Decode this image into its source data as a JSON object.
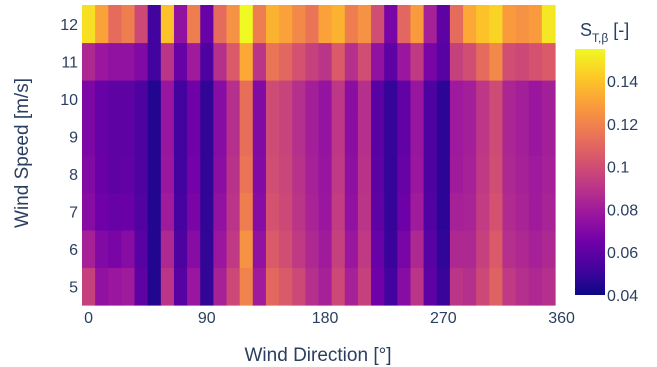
{
  "chart_data": {
    "type": "heatmap",
    "xlabel": "Wind Direction [°]",
    "ylabel": "Wind Speed [m/s]",
    "x_ticks": [
      0,
      90,
      180,
      270,
      360
    ],
    "y_ticks": [
      5,
      6,
      7,
      8,
      9,
      10,
      11,
      12
    ],
    "xlim": [
      -5,
      355
    ],
    "ylim": [
      4.5,
      12.5
    ],
    "x": [
      0,
      10,
      20,
      30,
      40,
      50,
      60,
      70,
      80,
      90,
      100,
      110,
      120,
      130,
      140,
      150,
      160,
      170,
      180,
      190,
      200,
      210,
      220,
      230,
      240,
      250,
      260,
      270,
      280,
      290,
      300,
      310,
      320,
      330,
      340,
      350
    ],
    "y": [
      5,
      6,
      7,
      8,
      9,
      10,
      11,
      12
    ],
    "z": [
      [
        0.095,
        0.075,
        0.078,
        0.08,
        0.06,
        0.045,
        0.09,
        0.058,
        0.078,
        0.048,
        0.082,
        0.098,
        0.12,
        0.08,
        0.11,
        0.105,
        0.098,
        0.088,
        0.082,
        0.098,
        0.082,
        0.095,
        0.065,
        0.052,
        0.072,
        0.09,
        0.06,
        0.05,
        0.09,
        0.088,
        0.098,
        0.108,
        0.092,
        0.088,
        0.085,
        0.088
      ],
      [
        0.082,
        0.07,
        0.068,
        0.072,
        0.058,
        0.045,
        0.085,
        0.055,
        0.072,
        0.048,
        0.078,
        0.092,
        0.125,
        0.075,
        0.105,
        0.1,
        0.092,
        0.085,
        0.08,
        0.095,
        0.078,
        0.092,
        0.062,
        0.05,
        0.068,
        0.085,
        0.058,
        0.048,
        0.085,
        0.085,
        0.095,
        0.105,
        0.088,
        0.085,
        0.082,
        0.085
      ],
      [
        0.072,
        0.065,
        0.062,
        0.063,
        0.056,
        0.045,
        0.08,
        0.053,
        0.068,
        0.048,
        0.075,
        0.09,
        0.118,
        0.072,
        0.102,
        0.098,
        0.09,
        0.083,
        0.078,
        0.093,
        0.075,
        0.09,
        0.06,
        0.049,
        0.064,
        0.08,
        0.056,
        0.047,
        0.082,
        0.083,
        0.093,
        0.102,
        0.086,
        0.083,
        0.08,
        0.083
      ],
      [
        0.07,
        0.063,
        0.06,
        0.061,
        0.055,
        0.045,
        0.078,
        0.052,
        0.066,
        0.048,
        0.073,
        0.089,
        0.115,
        0.071,
        0.1,
        0.097,
        0.089,
        0.082,
        0.077,
        0.092,
        0.074,
        0.089,
        0.059,
        0.049,
        0.062,
        0.078,
        0.055,
        0.047,
        0.08,
        0.082,
        0.092,
        0.1,
        0.085,
        0.082,
        0.079,
        0.082
      ],
      [
        0.069,
        0.062,
        0.06,
        0.06,
        0.055,
        0.045,
        0.077,
        0.052,
        0.065,
        0.048,
        0.072,
        0.088,
        0.113,
        0.07,
        0.099,
        0.096,
        0.088,
        0.081,
        0.076,
        0.091,
        0.073,
        0.088,
        0.058,
        0.049,
        0.061,
        0.077,
        0.055,
        0.047,
        0.079,
        0.081,
        0.091,
        0.099,
        0.084,
        0.081,
        0.078,
        0.081
      ],
      [
        0.069,
        0.062,
        0.06,
        0.06,
        0.055,
        0.045,
        0.077,
        0.052,
        0.065,
        0.048,
        0.072,
        0.088,
        0.113,
        0.07,
        0.099,
        0.096,
        0.088,
        0.081,
        0.076,
        0.091,
        0.073,
        0.088,
        0.058,
        0.049,
        0.061,
        0.077,
        0.055,
        0.047,
        0.079,
        0.081,
        0.091,
        0.099,
        0.084,
        0.081,
        0.078,
        0.081
      ],
      [
        0.085,
        0.078,
        0.075,
        0.075,
        0.07,
        0.052,
        0.09,
        0.062,
        0.08,
        0.055,
        0.088,
        0.105,
        0.132,
        0.09,
        0.115,
        0.11,
        0.102,
        0.095,
        0.09,
        0.105,
        0.088,
        0.1,
        0.075,
        0.06,
        0.078,
        0.092,
        0.068,
        0.058,
        0.095,
        0.1,
        0.112,
        0.122,
        0.1,
        0.098,
        0.102,
        0.105
      ],
      [
        0.148,
        0.13,
        0.112,
        0.118,
        0.098,
        0.052,
        0.14,
        0.075,
        0.118,
        0.062,
        0.112,
        0.125,
        0.16,
        0.118,
        0.135,
        0.13,
        0.122,
        0.115,
        0.13,
        0.135,
        0.118,
        0.125,
        0.1,
        0.068,
        0.11,
        0.128,
        0.082,
        0.06,
        0.112,
        0.132,
        0.14,
        0.145,
        0.128,
        0.125,
        0.128,
        0.15
      ]
    ],
    "colorscale": "plasma",
    "color_range": [
      0.04,
      0.155
    ],
    "colorbar": {
      "title_base": "S",
      "title_subscript": "T,β",
      "title_suffix": " [-]",
      "ticks": [
        "0.04",
        "0.06",
        "0.08",
        "0.1",
        "0.12",
        "0.14"
      ]
    }
  }
}
